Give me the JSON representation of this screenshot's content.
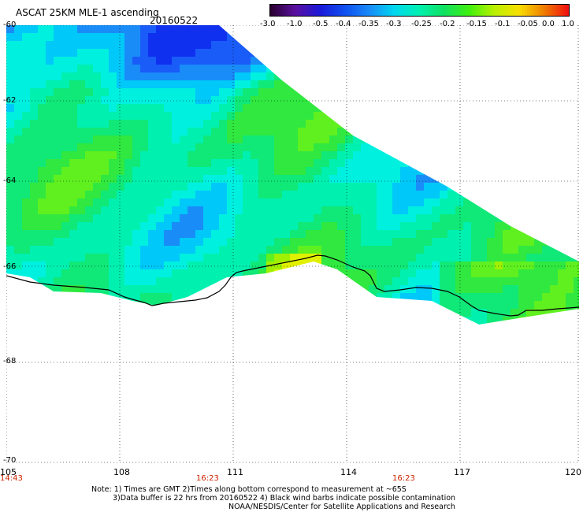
{
  "header": {
    "title": "ASCAT 25KM MLE-1 ascending",
    "date": "20160522"
  },
  "colorbar": {
    "labels": [
      "-3.0",
      "-1.0",
      "-0.5",
      "-0.4",
      "-0.35",
      "-0.3",
      "-0.25",
      "-0.2",
      "-0.15",
      "-0.1",
      "-0.05",
      "0.0",
      "1.0"
    ],
    "colors": [
      "#2a0030",
      "#5a10a0",
      "#1a1ad8",
      "#1050f0",
      "#1a8cf8",
      "#00d8f0",
      "#00f0b0",
      "#10e060",
      "#40f010",
      "#b8f000",
      "#f8e000",
      "#f08000",
      "#f01010"
    ]
  },
  "map": {
    "lat_labels": [
      "-60",
      "-62",
      "-64",
      "-66",
      "-68",
      "-70"
    ],
    "lon_labels": [
      "105",
      "108",
      "111",
      "114",
      "117",
      "120"
    ],
    "time_labels": [
      "14:43",
      "16:23",
      "16:23"
    ]
  },
  "notes": {
    "line1": "Note: 1) Times are GMT 2)Times along bottom correspond to measurement at ~65S",
    "line2": "3)Data buffer is 22 hrs from 20160522 4) Black wind barbs indicate possible contamination",
    "line3": "NOAA/NESDIS/Center for Satellite Applications and Research"
  }
}
